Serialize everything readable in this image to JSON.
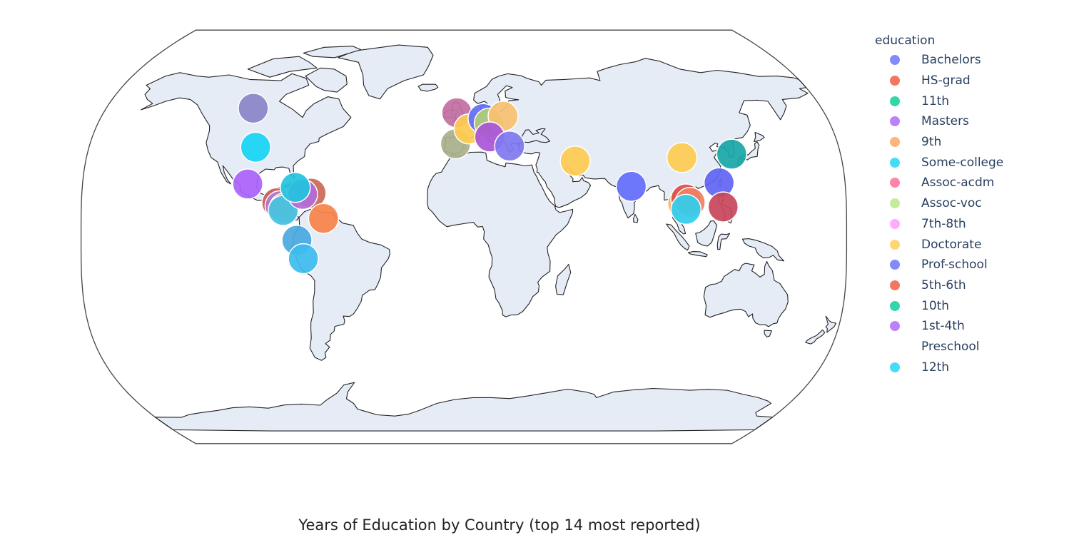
{
  "chart_data": {
    "type": "scatter_geo",
    "title": "Years of Education by Country (top 14 most reported)",
    "projection": "natural-earth",
    "legend": {
      "title": "education",
      "placement": "right",
      "items": [
        {
          "label": "Bachelors",
          "color": "#636efa"
        },
        {
          "label": "HS-grad",
          "color": "#ef553b"
        },
        {
          "label": "11th",
          "color": "#00cc96"
        },
        {
          "label": "Masters",
          "color": "#ab63fa"
        },
        {
          "label": "9th",
          "color": "#ffa15a"
        },
        {
          "label": "Some-college",
          "color": "#19d3f3"
        },
        {
          "label": "Assoc-acdm",
          "color": "#ff6692"
        },
        {
          "label": "Assoc-voc",
          "color": "#b6e880"
        },
        {
          "label": "7th-8th",
          "color": "#ff97ff"
        },
        {
          "label": "Doctorate",
          "color": "#fecb52"
        },
        {
          "label": "Prof-school",
          "color": "#636efa"
        },
        {
          "label": "5th-6th",
          "color": "#ef553b"
        },
        {
          "label": "10th",
          "color": "#00cc96"
        },
        {
          "label": "1st-4th",
          "color": "#ab63fa"
        },
        {
          "label": "Preschool",
          "color": null
        },
        {
          "label": "12th",
          "color": "#19d3f3"
        }
      ]
    },
    "points": [
      {
        "lon": -106,
        "lat": 56,
        "color": "#8a85c8"
      },
      {
        "lon": -100,
        "lat": 39,
        "color": "#19d3f3"
      },
      {
        "lon": -102,
        "lat": 23,
        "color": "#ab63fa"
      },
      {
        "lon": -88,
        "lat": 14.8,
        "color": "#d05a5a"
      },
      {
        "lon": -86.5,
        "lat": 13.5,
        "color": "#b37ad4"
      },
      {
        "lon": -84.5,
        "lat": 12.5,
        "color": "#e0a050"
      },
      {
        "lon": -85,
        "lat": 11.5,
        "color": "#44c3e6"
      },
      {
        "lon": -72,
        "lat": 19,
        "color": "#c96a55"
      },
      {
        "lon": -76,
        "lat": 18.5,
        "color": "#b36ad8"
      },
      {
        "lon": -79.5,
        "lat": 21.5,
        "color": "#23c3df"
      },
      {
        "lon": -66,
        "lat": 8,
        "color": "#f7834a"
      },
      {
        "lon": -78.5,
        "lat": -1.5,
        "color": "#4aa9e0"
      },
      {
        "lon": -75.5,
        "lat": -9.5,
        "color": "#3dbcee"
      },
      {
        "lon": -3.5,
        "lat": 54,
        "color": "#c370a3"
      },
      {
        "lon": -4,
        "lat": 40.5,
        "color": "#aab08c"
      },
      {
        "lon": 2.5,
        "lat": 47,
        "color": "#fecb52"
      },
      {
        "lon": 9.5,
        "lat": 51.5,
        "color": "#636efa"
      },
      {
        "lon": 12.5,
        "lat": 49.5,
        "color": "#b2cc76"
      },
      {
        "lon": 19.5,
        "lat": 52.5,
        "color": "#f7c271"
      },
      {
        "lon": 12.5,
        "lat": 43.5,
        "color": "#ab55d6"
      },
      {
        "lon": 22,
        "lat": 39.5,
        "color": "#8078f0"
      },
      {
        "lon": 53,
        "lat": 33,
        "color": "#fecb52"
      },
      {
        "lon": 79,
        "lat": 22,
        "color": "#636efa"
      },
      {
        "lon": 104,
        "lat": 34.5,
        "color": "#fecb52"
      },
      {
        "lon": 103,
        "lat": 14.5,
        "color": "#f6b26b"
      },
      {
        "lon": 104.5,
        "lat": 16.5,
        "color": "#d9504a"
      },
      {
        "lon": 106.5,
        "lat": 15,
        "color": "#f08060"
      },
      {
        "lon": 104.5,
        "lat": 12,
        "color": "#33cdee"
      },
      {
        "lon": 120.5,
        "lat": 23.5,
        "color": "#6265f2"
      },
      {
        "lon": 122,
        "lat": 13,
        "color": "#c9475c"
      },
      {
        "lon": 128,
        "lat": 36,
        "color": "#19a7a7"
      }
    ]
  }
}
